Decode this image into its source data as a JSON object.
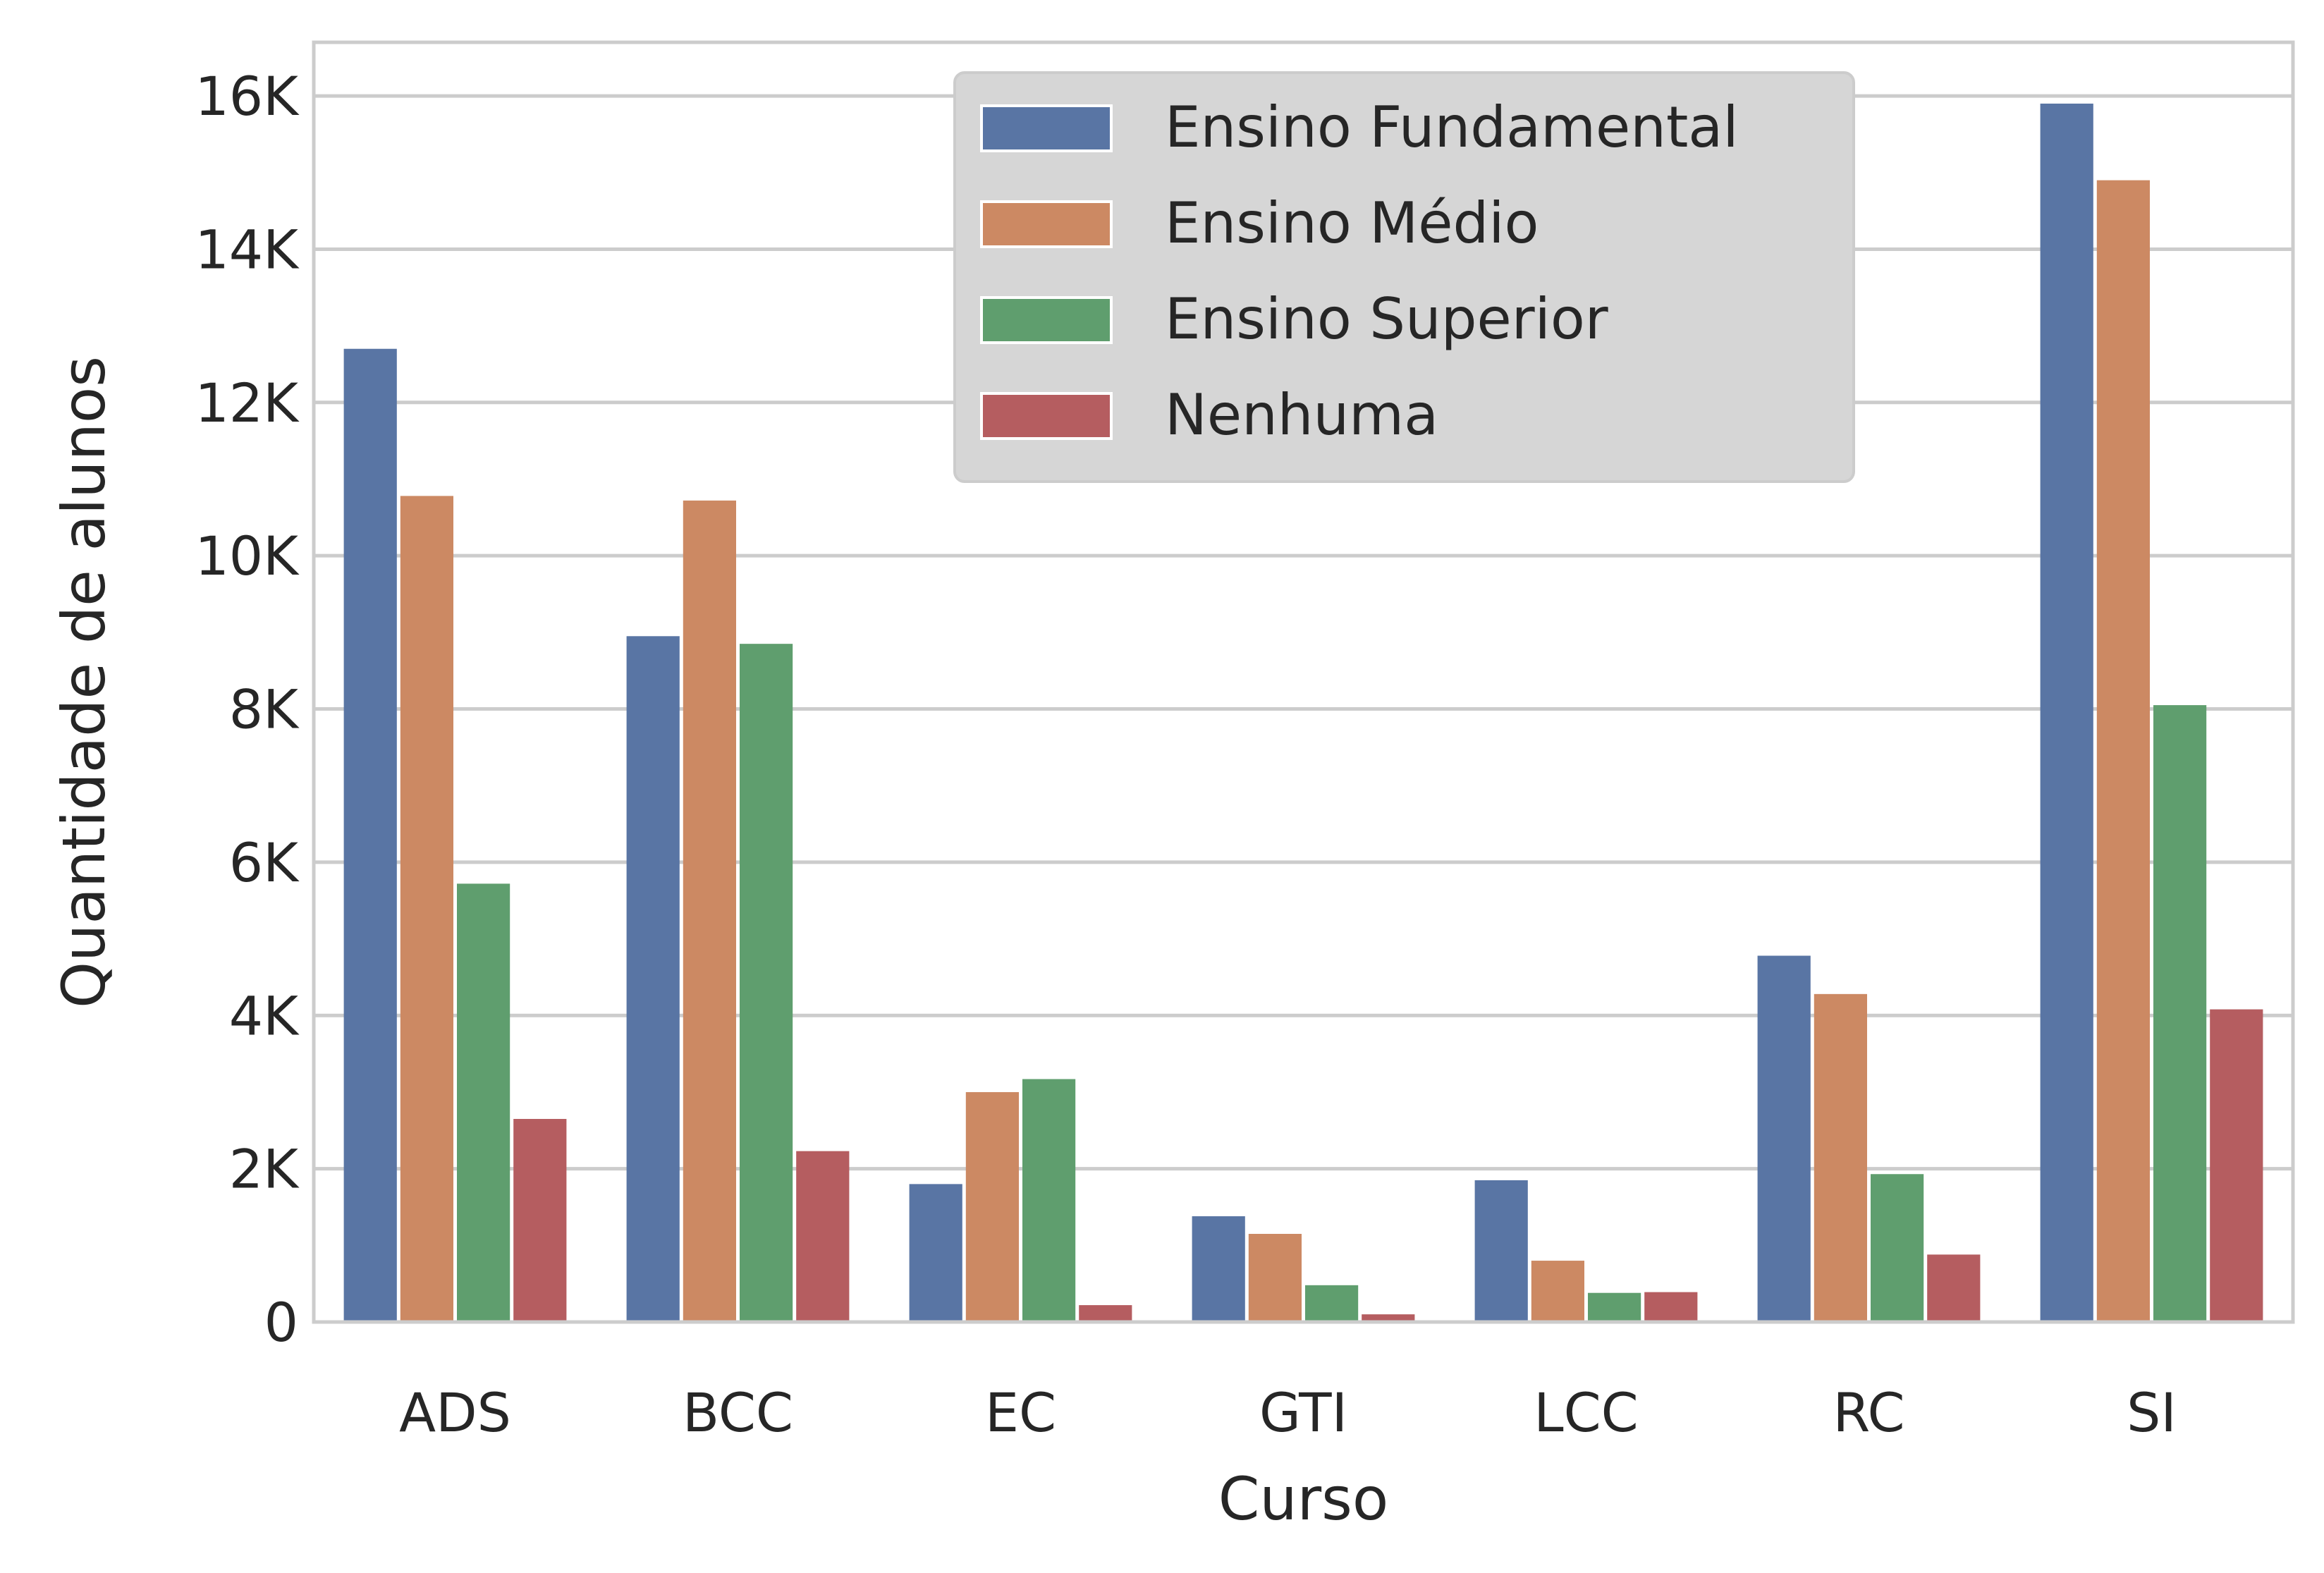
{
  "chart_data": {
    "type": "bar",
    "title": "",
    "xlabel": "Curso",
    "ylabel": "Quantidade de alunos",
    "categories": [
      "ADS",
      "BCC",
      "EC",
      "GTI",
      "LCC",
      "RC",
      "SI"
    ],
    "ylim": [
      0,
      16700
    ],
    "yticks": [
      0,
      2000,
      4000,
      6000,
      8000,
      10000,
      12000,
      14000,
      16000
    ],
    "ytick_labels": [
      "0",
      "2K",
      "4K",
      "6K",
      "8K",
      "10K",
      "12K",
      "14K",
      "16K"
    ],
    "grid": "horizontal",
    "legend_position": "top-center",
    "series": [
      {
        "name": "Ensino Fundamental",
        "color": "#5975a4",
        "values": [
          12700,
          8950,
          1800,
          1380,
          1850,
          4780,
          15900
        ]
      },
      {
        "name": "Ensino Médio",
        "color": "#cc8963",
        "values": [
          10780,
          10720,
          3000,
          1150,
          800,
          4280,
          14900
        ]
      },
      {
        "name": "Ensino Superior",
        "color": "#5f9e6e",
        "values": [
          5720,
          8850,
          3170,
          480,
          380,
          1930,
          8050
        ]
      },
      {
        "name": "Nenhuma",
        "color": "#b55d60",
        "values": [
          2650,
          2230,
          220,
          100,
          390,
          880,
          4080
        ]
      }
    ]
  }
}
